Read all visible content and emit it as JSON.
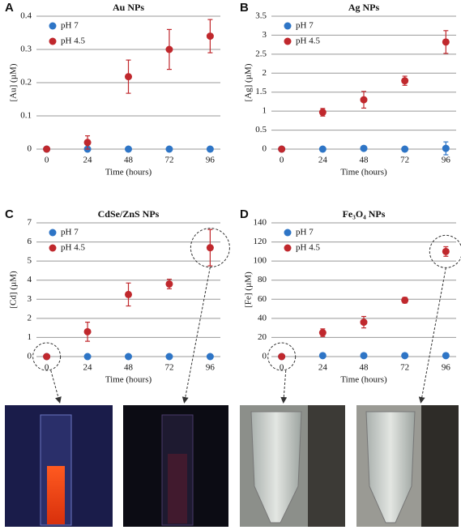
{
  "chart_data": [
    {
      "type": "scatter",
      "panel": "A",
      "title": "Au NPs",
      "xlabel": "Time (hours)",
      "ylabel": "[Au] (µM)",
      "x": [
        0,
        24,
        48,
        72,
        96
      ],
      "xlim": [
        -6,
        102
      ],
      "xticks": [
        0,
        24,
        48,
        72,
        96
      ],
      "ylim": [
        0,
        0.4
      ],
      "yticks": [
        0,
        0.1,
        0.2,
        0.3,
        0.4
      ],
      "grid": true,
      "legend": "upper left",
      "series": [
        {
          "name": "pH 7",
          "color": "#2e75c6",
          "values": [
            0,
            0,
            0,
            0,
            0
          ]
        },
        {
          "name": "pH 4.5",
          "color": "#c0282d",
          "values": [
            0,
            0.02,
            0.218,
            0.3,
            0.34
          ],
          "errors": [
            0,
            0.02,
            0.05,
            0.06,
            0.05
          ]
        }
      ]
    },
    {
      "type": "scatter",
      "panel": "B",
      "title": "Ag NPs",
      "xlabel": "Time (hours)",
      "ylabel": "[Ag] (µM)",
      "x": [
        0,
        24,
        48,
        72,
        96
      ],
      "xlim": [
        -6,
        102
      ],
      "xticks": [
        0,
        24,
        48,
        72,
        96
      ],
      "ylim": [
        0,
        3.5
      ],
      "yticks": [
        0,
        0.5,
        1,
        1.5,
        2,
        2.5,
        3,
        3.5
      ],
      "grid": true,
      "legend": "upper left",
      "series": [
        {
          "name": "pH 7",
          "color": "#2e75c6",
          "values": [
            0,
            0,
            0.02,
            0,
            0.02
          ],
          "errors": [
            0,
            0,
            0.05,
            0,
            0.17
          ]
        },
        {
          "name": "pH 4.5",
          "color": "#c0282d",
          "values": [
            0,
            0.97,
            1.3,
            1.8,
            2.82
          ],
          "errors": [
            0,
            0.1,
            0.22,
            0.12,
            0.3
          ]
        }
      ]
    },
    {
      "type": "scatter",
      "panel": "C",
      "title": "CdSe/ZnS NPs",
      "xlabel": "Time (hours)",
      "ylabel": "[Cd] (µM)",
      "x": [
        0,
        24,
        48,
        72,
        96
      ],
      "xlim": [
        -6,
        102
      ],
      "xticks": [
        0,
        24,
        48,
        72,
        96
      ],
      "ylim": [
        0,
        7
      ],
      "yticks": [
        0,
        1,
        2,
        3,
        4,
        5,
        6,
        7
      ],
      "grid": true,
      "legend": "upper left",
      "series": [
        {
          "name": "pH 7",
          "color": "#2e75c6",
          "values": [
            0,
            0,
            0,
            0,
            0
          ]
        },
        {
          "name": "pH 4.5",
          "color": "#c0282d",
          "values": [
            0,
            1.3,
            3.25,
            3.8,
            5.7
          ],
          "errors": [
            0,
            0.5,
            0.6,
            0.25,
            0.95
          ]
        }
      ]
    },
    {
      "type": "scatter",
      "panel": "D",
      "title": "Fe₃O₄ NPs",
      "xlabel": "Time (hours)",
      "ylabel": "[Fe] (µM)",
      "x": [
        0,
        24,
        48,
        72,
        96
      ],
      "xlim": [
        -6,
        102
      ],
      "xticks": [
        0,
        24,
        48,
        72,
        96
      ],
      "ylim": [
        0,
        140
      ],
      "yticks": [
        0,
        20,
        40,
        60,
        80,
        100,
        120,
        140
      ],
      "grid": true,
      "legend": "upper left",
      "series": [
        {
          "name": "pH 7",
          "color": "#2e75c6",
          "values": [
            0,
            1,
            1,
            1,
            1
          ]
        },
        {
          "name": "pH 4.5",
          "color": "#c0282d",
          "values": [
            0,
            25,
            36,
            59,
            110
          ],
          "errors": [
            0,
            4,
            6,
            3,
            5
          ]
        }
      ]
    }
  ]
}
